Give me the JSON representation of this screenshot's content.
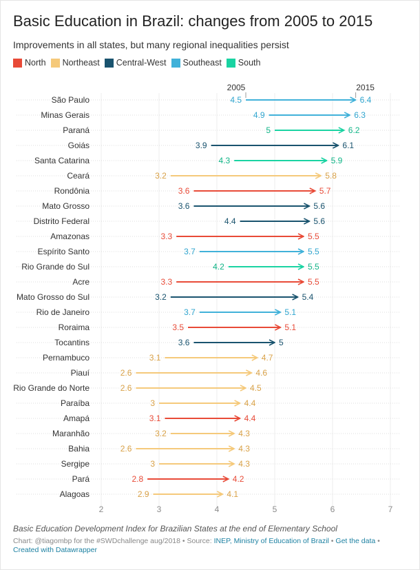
{
  "title": "Basic Education in Brazil: changes from 2005 to 2015",
  "subtitle": "Improvements in all states, but many regional inequalities persist",
  "legend": [
    {
      "label": "North",
      "color": "#e84a37"
    },
    {
      "label": "Northeast",
      "color": "#f5c97a"
    },
    {
      "label": "Central-West",
      "color": "#19536e"
    },
    {
      "label": "Southeast",
      "color": "#40b1d9"
    },
    {
      "label": "South",
      "color": "#19d3a2"
    }
  ],
  "notes": "Basic Education Development Index for Brazilian States at the end of Elementary School",
  "footer": {
    "prefix": "Chart: @tiagombp for the #SWDchallenge aug/2018 • Source: ",
    "source": "INEP, Ministry of Education of Brazil",
    "sep1": " • ",
    "get_data": "Get the data",
    "sep2": " • ",
    "created": "Created with Datawrapper"
  },
  "chart_data": {
    "type": "arrow-dot",
    "title": "Basic Education in Brazil: changes from 2005 to 2015",
    "start_label": "2005",
    "end_label": "2015",
    "xlim": [
      2,
      7
    ],
    "xticks": [
      "2",
      "3",
      "4",
      "5",
      "6",
      "7"
    ],
    "region_colors": {
      "North": "#e84a37",
      "Northeast": "#f5c97a",
      "Central-West": "#19536e",
      "Southeast": "#40b1d9",
      "South": "#19d3a2"
    },
    "region_text_colors": {
      "North": "#e84a37",
      "Northeast": "#d9a147",
      "Central-West": "#19536e",
      "Southeast": "#2fa5cf",
      "South": "#10b587"
    },
    "rows": [
      {
        "state": "São Paulo",
        "region": "Southeast",
        "start": 4.5,
        "start_label": "4.5",
        "end": 6.4,
        "end_label": "6.4"
      },
      {
        "state": "Minas Gerais",
        "region": "Southeast",
        "start": 4.9,
        "start_label": "4.9",
        "end": 6.3,
        "end_label": "6.3"
      },
      {
        "state": "Paraná",
        "region": "South",
        "start": 5.0,
        "start_label": "5",
        "end": 6.2,
        "end_label": "6.2"
      },
      {
        "state": "Goiás",
        "region": "Central-West",
        "start": 3.9,
        "start_label": "3.9",
        "end": 6.1,
        "end_label": "6.1"
      },
      {
        "state": "Santa Catarina",
        "region": "South",
        "start": 4.3,
        "start_label": "4.3",
        "end": 5.9,
        "end_label": "5.9"
      },
      {
        "state": "Ceará",
        "region": "Northeast",
        "start": 3.2,
        "start_label": "3.2",
        "end": 5.8,
        "end_label": "5.8"
      },
      {
        "state": "Rondônia",
        "region": "North",
        "start": 3.6,
        "start_label": "3.6",
        "end": 5.7,
        "end_label": "5.7"
      },
      {
        "state": "Mato Grosso",
        "region": "Central-West",
        "start": 3.6,
        "start_label": "3.6",
        "end": 5.6,
        "end_label": "5.6"
      },
      {
        "state": "Distrito Federal",
        "region": "Central-West",
        "start": 4.4,
        "start_label": "4.4",
        "end": 5.6,
        "end_label": "5.6"
      },
      {
        "state": "Amazonas",
        "region": "North",
        "start": 3.3,
        "start_label": "3.3",
        "end": 5.5,
        "end_label": "5.5"
      },
      {
        "state": "Espírito Santo",
        "region": "Southeast",
        "start": 3.7,
        "start_label": "3.7",
        "end": 5.5,
        "end_label": "5.5"
      },
      {
        "state": "Rio Grande do Sul",
        "region": "South",
        "start": 4.2,
        "start_label": "4.2",
        "end": 5.5,
        "end_label": "5.5"
      },
      {
        "state": "Acre",
        "region": "North",
        "start": 3.3,
        "start_label": "3.3",
        "end": 5.5,
        "end_label": "5.5"
      },
      {
        "state": "Mato Grosso do Sul",
        "region": "Central-West",
        "start": 3.2,
        "start_label": "3.2",
        "end": 5.4,
        "end_label": "5.4"
      },
      {
        "state": "Rio de Janeiro",
        "region": "Southeast",
        "start": 3.7,
        "start_label": "3.7",
        "end": 5.1,
        "end_label": "5.1"
      },
      {
        "state": "Roraima",
        "region": "North",
        "start": 3.5,
        "start_label": "3.5",
        "end": 5.1,
        "end_label": "5.1"
      },
      {
        "state": "Tocantins",
        "region": "Central-West",
        "start": 3.6,
        "start_label": "3.6",
        "end": 5.0,
        "end_label": "5"
      },
      {
        "state": "Pernambuco",
        "region": "Northeast",
        "start": 3.1,
        "start_label": "3.1",
        "end": 4.7,
        "end_label": "4.7"
      },
      {
        "state": "Piauí",
        "region": "Northeast",
        "start": 2.6,
        "start_label": "2.6",
        "end": 4.6,
        "end_label": "4.6"
      },
      {
        "state": "Rio Grande do Norte",
        "region": "Northeast",
        "start": 2.6,
        "start_label": "2.6",
        "end": 4.5,
        "end_label": "4.5"
      },
      {
        "state": "Paraíba",
        "region": "Northeast",
        "start": 3.0,
        "start_label": "3",
        "end": 4.4,
        "end_label": "4.4"
      },
      {
        "state": "Amapá",
        "region": "North",
        "start": 3.1,
        "start_label": "3.1",
        "end": 4.4,
        "end_label": "4.4"
      },
      {
        "state": "Maranhão",
        "region": "Northeast",
        "start": 3.2,
        "start_label": "3.2",
        "end": 4.3,
        "end_label": "4.3"
      },
      {
        "state": "Bahia",
        "region": "Northeast",
        "start": 2.6,
        "start_label": "2.6",
        "end": 4.3,
        "end_label": "4.3"
      },
      {
        "state": "Sergipe",
        "region": "Northeast",
        "start": 3.0,
        "start_label": "3",
        "end": 4.3,
        "end_label": "4.3"
      },
      {
        "state": "Pará",
        "region": "North",
        "start": 2.8,
        "start_label": "2.8",
        "end": 4.2,
        "end_label": "4.2"
      },
      {
        "state": "Alagoas",
        "region": "Northeast",
        "start": 2.9,
        "start_label": "2.9",
        "end": 4.1,
        "end_label": "4.1"
      }
    ]
  }
}
